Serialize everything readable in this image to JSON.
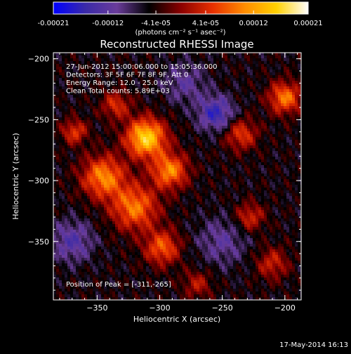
{
  "chart_data": {
    "type": "heatmap",
    "title": "Reconstructed RHESSI Image",
    "xlabel": "Heliocentric X (arcsec)",
    "ylabel": "Heliocentric Y (arcsec)",
    "xlim": [
      -385,
      -187
    ],
    "ylim": [
      -398,
      -195
    ],
    "xticks": [
      -350,
      -300,
      -250,
      -200
    ],
    "yticks": [
      -200,
      -250,
      -300,
      -350
    ],
    "colorbar": {
      "ticks": [
        -0.00021,
        -0.00012,
        -4.1e-05,
        4.1e-05,
        0.00012,
        0.00021
      ],
      "tick_labels": [
        "-0.00021",
        "-0.00012",
        "-4.1e-05",
        "4.1e-05",
        "0.00012",
        "0.00021"
      ],
      "units": "(photons cm⁻² s⁻¹ asec⁻²)",
      "range": [
        -0.00021,
        0.00021
      ],
      "stops": [
        "#0000ff",
        "#3a2aa8",
        "#6a3c9a",
        "#000000",
        "#8a0000",
        "#e83000",
        "#ff8c00",
        "#ffd000",
        "#ffffff"
      ]
    },
    "annotations": [
      "27-Jun-2012 15:00:06.000 to 15:05:36.000",
      "Detectors: 3F 5F 6F 7F 8F 9F, Att 0",
      "Energy Range: 12.0 - 25.0 keV",
      "Clean    Total counts: 5.89E+03"
    ],
    "peak_label": "Position of Peak = [-311,-265]",
    "peak": [
      -311,
      -265
    ],
    "sources": [
      {
        "x": -311,
        "y": -265,
        "amp": 0.00021,
        "sigma": 11
      },
      {
        "x": -292,
        "y": -292,
        "amp": 0.00015,
        "sigma": 10
      },
      {
        "x": -345,
        "y": -297,
        "amp": 0.00015,
        "sigma": 12
      },
      {
        "x": -320,
        "y": -322,
        "amp": 0.00014,
        "sigma": 13
      },
      {
        "x": -298,
        "y": -355,
        "amp": 0.00012,
        "sigma": 10
      },
      {
        "x": -368,
        "y": -260,
        "amp": 0.0001,
        "sigma": 7
      },
      {
        "x": -200,
        "y": -232,
        "amp": 0.00014,
        "sigma": 9
      },
      {
        "x": -235,
        "y": -262,
        "amp": 0.0001,
        "sigma": 9
      },
      {
        "x": -228,
        "y": -330,
        "amp": 9e-05,
        "sigma": 8
      },
      {
        "x": -210,
        "y": -368,
        "amp": 8e-05,
        "sigma": 9
      },
      {
        "x": -270,
        "y": -385,
        "amp": 7e-05,
        "sigma": 8
      },
      {
        "x": -335,
        "y": -238,
        "amp": 9e-05,
        "sigma": 8
      },
      {
        "x": -255,
        "y": -245,
        "amp": -0.00011,
        "sigma": 10
      },
      {
        "x": -370,
        "y": -350,
        "amp": -8e-05,
        "sigma": 12
      },
      {
        "x": -280,
        "y": -220,
        "amp": -6e-05,
        "sigma": 12
      },
      {
        "x": -250,
        "y": -350,
        "amp": -6e-05,
        "sigma": 14
      }
    ]
  },
  "footer": {
    "timestamp": "17-May-2014 16:13"
  }
}
